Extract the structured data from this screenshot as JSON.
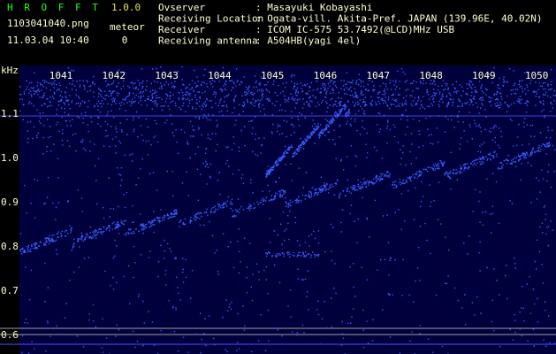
{
  "header": {
    "app_name": "H R O F F T",
    "version": "1.0.0",
    "filename": "1103041040.png",
    "datetime": "11.03.04 10:40",
    "meteor_label": "meteor",
    "meteor_count": "0",
    "fields": [
      {
        "label": "Ovserver",
        "value": ": Masayuki Kobayashi"
      },
      {
        "label": "Receiving Location",
        "value": ": Ogata-vill. Akita-Pref. JAPAN (139.96E, 40.02N)"
      },
      {
        "label": "Receiver",
        "value": ": ICOM IC-575 53.7492(@LCD)MHz USB"
      },
      {
        "label": "Receiving antenna",
        "value": ": A504HB(yagi 4el)"
      }
    ]
  },
  "spectrogram": {
    "y_unit": "kHz",
    "y_labels": [
      "1.1",
      "1.0",
      "0.9",
      "0.8",
      "0.7",
      "0.6"
    ],
    "x_labels": [
      "1041",
      "1042",
      "1043",
      "1044",
      "1045",
      "1046",
      "1047",
      "1048",
      "1049",
      "1050"
    ]
  }
}
